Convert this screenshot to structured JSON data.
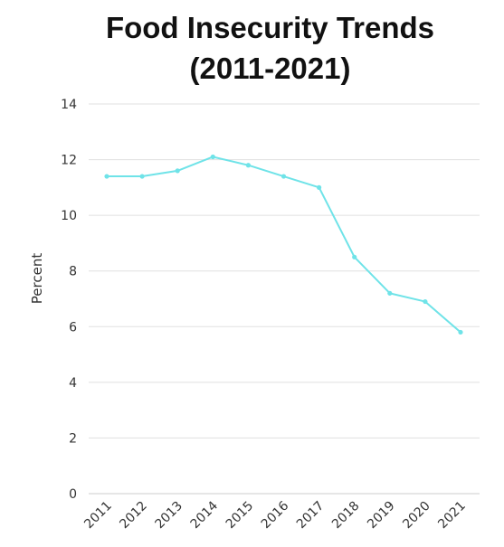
{
  "chart_data": {
    "type": "line",
    "title_line1": "Food Insecurity Trends",
    "title_line2": "(2011-2021)",
    "xlabel": "",
    "ylabel": "Percent",
    "ylim": [
      0,
      14
    ],
    "yticks": [
      0,
      2,
      4,
      6,
      8,
      10,
      12,
      14
    ],
    "categories": [
      "2011",
      "2012",
      "2013",
      "2014",
      "2015",
      "2016",
      "2017",
      "2018",
      "2019",
      "2020",
      "2021"
    ],
    "series": [
      {
        "values": [
          11.4,
          11.4,
          11.6,
          12.1,
          11.8,
          11.4,
          11.0,
          8.5,
          7.2,
          6.9,
          5.8
        ]
      }
    ],
    "grid": true,
    "line_color": "#6fe3e8",
    "grid_color": "#e0e0e0"
  }
}
